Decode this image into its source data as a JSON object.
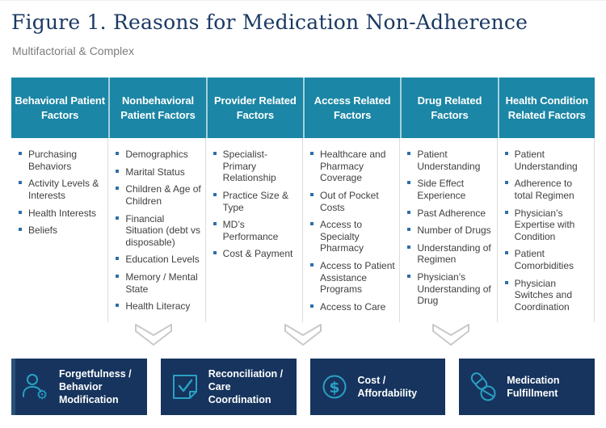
{
  "page": {
    "title": "Figure 1. Reasons for Medication Non-Adherence",
    "subtitle": "Multifactorial & Complex"
  },
  "colors": {
    "header_teal": "#1B86A5",
    "header_divider": "#A6D0DD",
    "body_divider": "#DCDCDC",
    "bullet_blue": "#2F6EA8",
    "body_text": "#3F3F3F",
    "title_navy": "#1B3A64",
    "subtitle_gray": "#7C7C7C",
    "chevron_gray": "#C9C9C9",
    "outcome_navy": "#16345E",
    "icon_teal": "#2AA0C4"
  },
  "columns": [
    {
      "header": "Behavioral Patient Factors",
      "items": [
        "Purchasing Behaviors",
        "Activity Levels & Interests",
        "Health Interests",
        "Beliefs"
      ]
    },
    {
      "header": "Nonbehavioral Patient Factors",
      "items": [
        "Demographics",
        "Marital Status",
        "Children & Age of Children",
        "Financial Situation (debt vs disposable)",
        "Education Levels",
        "Memory / Mental State",
        "Health Literacy"
      ]
    },
    {
      "header": "Provider Related Factors",
      "items": [
        "Specialist-Primary Relationship",
        "Practice Size & Type",
        "MD’s Performance",
        "Cost & Payment"
      ]
    },
    {
      "header": "Access Related Factors",
      "items": [
        "Healthcare and Pharmacy Coverage",
        "Out of Pocket Costs",
        "Access to Specialty Pharmacy",
        "Access to Patient Assistance Programs",
        "Access to Care"
      ]
    },
    {
      "header": "Drug Related Factors",
      "items": [
        "Patient Understanding",
        "Side Effect Experience",
        "Past Adherence",
        "Number of Drugs",
        "Understanding of Regimen",
        "Physician’s Understanding of Drug"
      ]
    },
    {
      "header": "Health Condition Related Factors",
      "items": [
        "Patient Understanding",
        "Adherence to total Regimen",
        "Physician’s Expertise with Condition",
        "Patient Comorbidities",
        "Physician Switches and Coordination"
      ]
    }
  ],
  "outcomes": [
    {
      "label": "Forgetfulness / Behavior Modification",
      "icon": "person-gear-icon"
    },
    {
      "label": "Reconciliation / Care Coordination",
      "icon": "check-page-icon"
    },
    {
      "label": "Cost / Affordability",
      "icon": "dollar-circle-icon"
    },
    {
      "label": "Medication Fulfillment",
      "icon": "pills-icon"
    }
  ]
}
